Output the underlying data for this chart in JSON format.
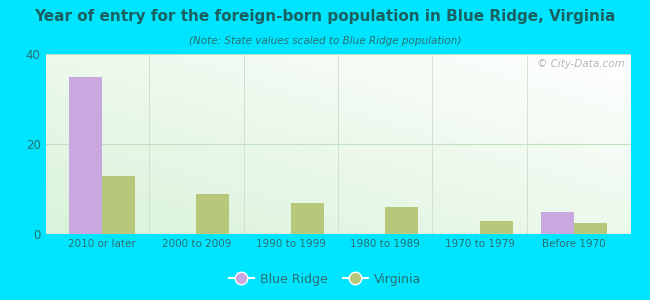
{
  "title": "Year of entry for the foreign-born population in Blue Ridge, Virginia",
  "subtitle": "(Note: State values scaled to Blue Ridge population)",
  "categories": [
    "2010 or later",
    "2000 to 2009",
    "1990 to 1999",
    "1980 to 1989",
    "1970 to 1979",
    "Before 1970"
  ],
  "blue_ridge_values": [
    35,
    0,
    0,
    0,
    0,
    5
  ],
  "virginia_values": [
    13,
    9,
    7,
    6,
    3,
    2.5
  ],
  "blue_ridge_color": "#c9a8e0",
  "virginia_color": "#b8c87a",
  "background_outer": "#00e5ff",
  "ylim": [
    0,
    40
  ],
  "yticks": [
    0,
    20,
    40
  ],
  "bar_width": 0.35,
  "legend_labels": [
    "Blue Ridge",
    "Virginia"
  ],
  "watermark": "© City-Data.com",
  "title_color": "#1a6060",
  "subtitle_color": "#2a7070",
  "tick_color": "#2a7070",
  "grid_color": "#c0e0c0"
}
